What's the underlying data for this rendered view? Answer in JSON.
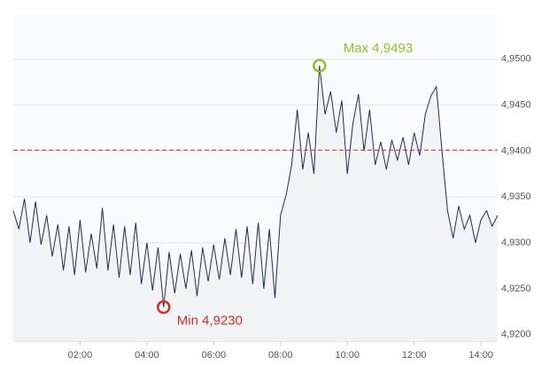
{
  "chart_data": {
    "type": "line",
    "x": [
      "00:00",
      "00:10",
      "00:20",
      "00:30",
      "00:40",
      "00:50",
      "01:00",
      "01:10",
      "01:20",
      "01:30",
      "01:40",
      "01:50",
      "02:00",
      "02:10",
      "02:20",
      "02:30",
      "02:40",
      "02:50",
      "03:00",
      "03:10",
      "03:20",
      "03:30",
      "03:40",
      "03:50",
      "04:00",
      "04:10",
      "04:20",
      "04:30",
      "04:40",
      "04:50",
      "05:00",
      "05:10",
      "05:20",
      "05:30",
      "05:40",
      "05:50",
      "06:00",
      "06:10",
      "06:20",
      "06:30",
      "06:40",
      "06:50",
      "07:00",
      "07:10",
      "07:20",
      "07:30",
      "07:40",
      "07:50",
      "08:00",
      "08:10",
      "08:20",
      "08:30",
      "08:40",
      "08:50",
      "09:00",
      "09:10",
      "09:20",
      "09:30",
      "09:40",
      "09:50",
      "10:00",
      "10:10",
      "10:20",
      "10:30",
      "10:40",
      "10:50",
      "11:00",
      "11:10",
      "11:20",
      "11:30",
      "11:40",
      "11:50",
      "12:00",
      "12:10",
      "12:20",
      "12:30",
      "12:40",
      "12:50",
      "13:00",
      "13:10",
      "13:20",
      "13:30",
      "13:40",
      "13:50",
      "14:00",
      "14:10",
      "14:20",
      "14:30"
    ],
    "series": [
      {
        "color": "#1f2f4f",
        "values": [
          4.9335,
          4.9315,
          4.9348,
          4.93,
          4.9345,
          4.9298,
          4.933,
          4.9285,
          4.932,
          4.927,
          4.9318,
          4.9265,
          4.9325,
          4.9268,
          4.931,
          4.9272,
          4.9338,
          4.927,
          4.932,
          4.9262,
          4.9318,
          4.9265,
          4.9322,
          4.9255,
          4.93,
          4.9248,
          4.9295,
          4.923,
          4.929,
          4.9245,
          4.9288,
          4.925,
          4.9292,
          4.9242,
          4.9295,
          4.9258,
          4.9298,
          4.926,
          4.9305,
          4.9265,
          4.9315,
          4.9262,
          4.9318,
          4.9255,
          4.9322,
          4.925,
          4.9315,
          4.924,
          4.933,
          4.9352,
          4.9385,
          4.9445,
          4.938,
          4.942,
          4.9375,
          4.9493,
          4.944,
          4.9465,
          4.942,
          4.9455,
          4.9375,
          4.943,
          4.9462,
          4.94,
          4.9445,
          4.9385,
          4.941,
          4.938,
          4.9412,
          4.939,
          4.9415,
          4.9385,
          4.942,
          4.9395,
          4.944,
          4.946,
          4.947,
          4.94,
          4.9335,
          4.9305,
          4.934,
          4.9315,
          4.933,
          4.93,
          4.9325,
          4.9335,
          4.9318,
          4.933
        ]
      }
    ],
    "xlim": [
      "00:00",
      "14:30"
    ],
    "xticks": [
      "02:00",
      "04:00",
      "06:00",
      "08:00",
      "10:00",
      "12:00",
      "14:00"
    ],
    "ylim": [
      4.9193,
      4.955
    ],
    "yticks": [
      {
        "value": 4.92,
        "label": "4,9200"
      },
      {
        "value": 4.925,
        "label": "4,9250"
      },
      {
        "value": 4.93,
        "label": "4,9300"
      },
      {
        "value": 4.935,
        "label": "4,9350"
      },
      {
        "value": 4.94,
        "label": "4,9400"
      },
      {
        "value": 4.945,
        "label": "4,9450"
      },
      {
        "value": 4.95,
        "label": "4,9500"
      }
    ],
    "grid": true,
    "reference_line": {
      "value": 4.9401,
      "color": "#c0392b"
    },
    "annotations": [
      {
        "text": "Max 4,9493",
        "x": "09:10",
        "y": 4.9493,
        "color": "#9bbb2a"
      },
      {
        "text": "Min 4,9230",
        "x": "04:30",
        "y": 4.923,
        "color": "#d0312d"
      }
    ]
  }
}
